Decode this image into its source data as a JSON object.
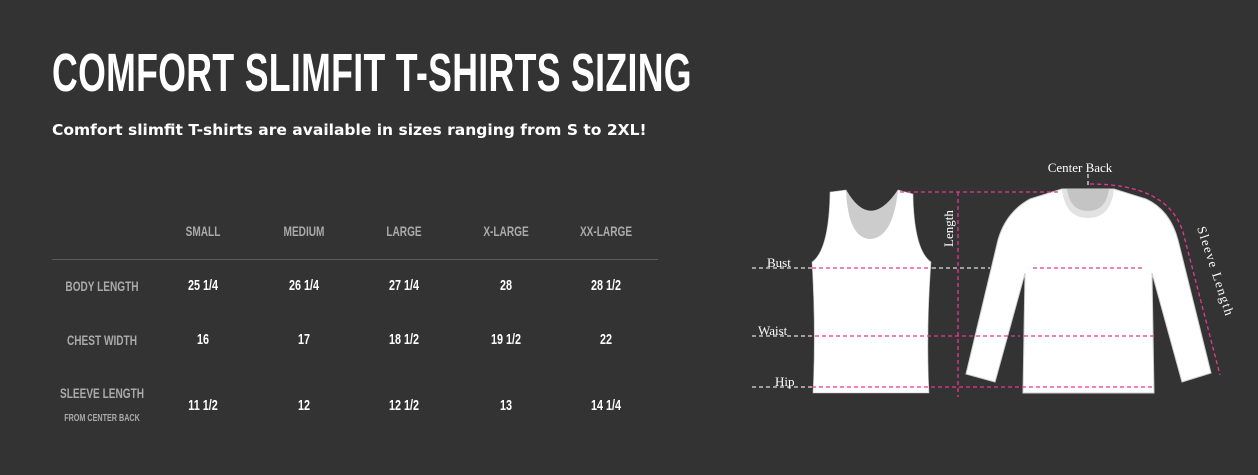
{
  "header": {
    "title": "COMFORT SLIMFIT T-SHIRTS SIZING",
    "subtitle": "Comfort slimfit T-shirts are available in sizes ranging from S to 2XL!"
  },
  "table": {
    "columns": [
      "SMALL",
      "MEDIUM",
      "LARGE",
      "X-LARGE",
      "XX-LARGE"
    ],
    "rows": [
      {
        "label": "BODY LENGTH",
        "sublabel": "",
        "values": [
          "25 1/4",
          "26 1/4",
          "27 1/4",
          "28",
          "28 1/2"
        ]
      },
      {
        "label": "CHEST WIDTH",
        "sublabel": "",
        "values": [
          "16",
          "17",
          "18 1/2",
          "19 1/2",
          "22"
        ]
      },
      {
        "label": "SLEEVE LENGTH",
        "sublabel": "FROM CENTER BACK",
        "values": [
          "11 1/2",
          "12",
          "12 1/2",
          "13",
          "14 1/4"
        ]
      }
    ]
  },
  "diagram": {
    "labels": {
      "center_back": "Center Back",
      "length": "Length",
      "sleeve_length": "Sleeve Length",
      "bust": "Bust",
      "waist": "Waist",
      "hip": "Hip"
    },
    "colors": {
      "measure_line": "#e8388f",
      "guide_line": "#dddddd",
      "garment": "#ffffff",
      "collar": "#cccccc",
      "background": "#333333"
    }
  }
}
